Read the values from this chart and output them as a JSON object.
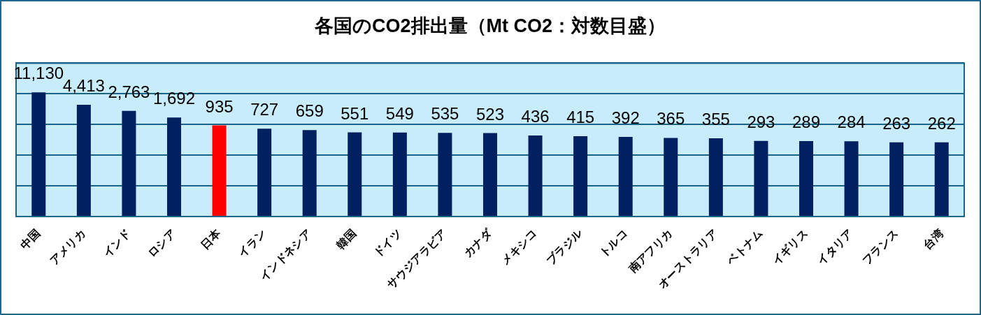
{
  "chart_data": {
    "type": "bar",
    "title": "各国のCO2排出量（Mt CO2：対数目盛）",
    "categories": [
      "中国",
      "アメリカ",
      "インド",
      "ロシア",
      "日本",
      "イラン",
      "インドネシア",
      "韓国",
      "ドイツ",
      "サウジアラビア",
      "カナダ",
      "メキシコ",
      "ブラジル",
      "トルコ",
      "南アフリカ",
      "オーストラリア",
      "ベトナム",
      "イギリス",
      "イタリア",
      "フランス",
      "台湾"
    ],
    "values": [
      11130,
      4413,
      2763,
      1692,
      935,
      727,
      659,
      551,
      549,
      535,
      523,
      436,
      415,
      392,
      365,
      355,
      293,
      289,
      284,
      263,
      262
    ],
    "colors": [
      "#002060",
      "#002060",
      "#002060",
      "#002060",
      "#ff0000",
      "#002060",
      "#002060",
      "#002060",
      "#002060",
      "#002060",
      "#002060",
      "#002060",
      "#002060",
      "#002060",
      "#002060",
      "#002060",
      "#002060",
      "#002060",
      "#002060",
      "#002060",
      "#002060"
    ],
    "value_labels": [
      "11,130",
      "4,413",
      "2,763",
      "1,692",
      "935",
      "727",
      "659",
      "551",
      "549",
      "535",
      "523",
      "436",
      "415",
      "392",
      "365",
      "355",
      "293",
      "289",
      "284",
      "263",
      "262"
    ],
    "log": true,
    "ylim": [
      1,
      100000
    ],
    "yticks": [
      {
        "value": 1,
        "label": null
      },
      {
        "value": 10,
        "label": null
      },
      {
        "value": 100,
        "label": null
      },
      {
        "value": 1000,
        "label": null
      },
      {
        "value": 10000,
        "label": null
      },
      {
        "value": 100000,
        "label": null
      }
    ],
    "tick_labels": "x",
    "grid": "y"
  }
}
